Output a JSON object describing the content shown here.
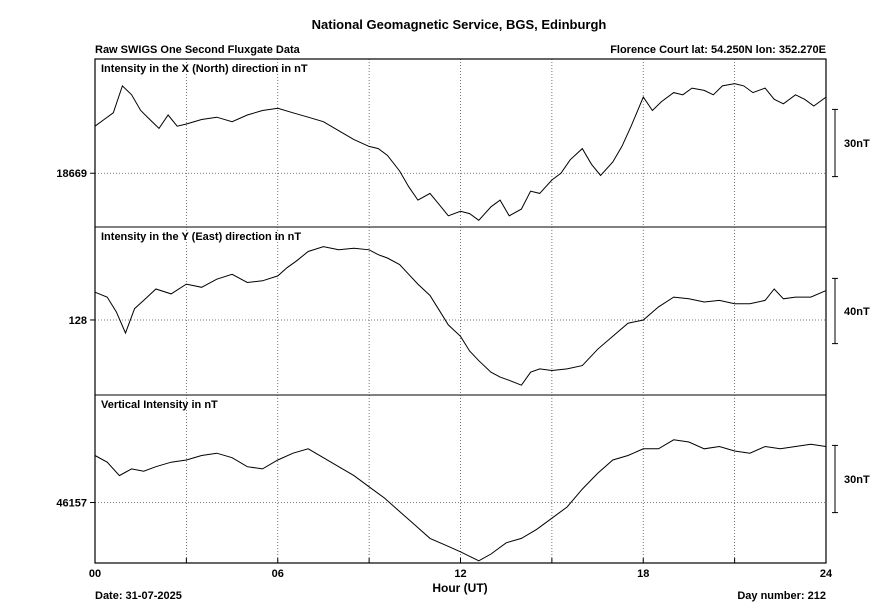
{
  "title": "National Geomagnetic Service, BGS, Edinburgh",
  "subtitle_left": "Raw SWIGS One Second Fluxgate Data",
  "subtitle_right": "Florence Court  lat: 54.250N lon: 352.270E",
  "footer": {
    "date_label": "Date: 31-07-2025",
    "day_label": "Day number:  212"
  },
  "chart_data": {
    "type": "line",
    "xlabel": "Hour (UT)",
    "xlim": [
      0,
      24
    ],
    "x_ticks": [
      0,
      3,
      6,
      9,
      12,
      15,
      18,
      21,
      24
    ],
    "x_tick_labels": [
      "00",
      "06",
      "12",
      "18",
      "24"
    ],
    "grid": true,
    "panels": [
      {
        "label": "Intensity in the X (North) direction in nT",
        "baseline_label": "18669",
        "baseline_value": 18669,
        "scale_label": "30nT",
        "scale_nT": 30,
        "ylim": [
          18645,
          18720
        ],
        "series": [
          {
            "color": "#000000",
            "x": [
              0,
              0.3,
              0.6,
              0.9,
              1.2,
              1.5,
              1.8,
              2.1,
              2.4,
              2.7,
              3.0,
              3.5,
              4.0,
              4.5,
              5.0,
              5.5,
              6.0,
              6.5,
              7.0,
              7.5,
              8.0,
              8.5,
              9.0,
              9.3,
              9.6,
              10.0,
              10.3,
              10.6,
              11.0,
              11.3,
              11.6,
              12.0,
              12.3,
              12.6,
              13.0,
              13.3,
              13.6,
              14.0,
              14.3,
              14.6,
              15.0,
              15.3,
              15.6,
              16.0,
              16.3,
              16.6,
              17.0,
              17.3,
              17.6,
              18.0,
              18.3,
              18.6,
              19.0,
              19.3,
              19.6,
              20.0,
              20.3,
              20.6,
              21.0,
              21.3,
              21.6,
              22.0,
              22.3,
              22.6,
              23.0,
              23.3,
              23.6,
              24.0
            ],
            "values": [
              18690,
              18693,
              18696,
              18708,
              18704,
              18697,
              18693,
              18689,
              18695,
              18690,
              18691,
              18693,
              18694,
              18692,
              18695,
              18697,
              18698,
              18696,
              18694,
              18692,
              18688,
              18684,
              18681,
              18680,
              18677,
              18670,
              18663,
              18657,
              18660,
              18655,
              18650,
              18652,
              18651,
              18648,
              18654,
              18657,
              18650,
              18653,
              18661,
              18660,
              18666,
              18669,
              18675,
              18680,
              18673,
              18668,
              18674,
              18681,
              18690,
              18703,
              18697,
              18701,
              18705,
              18704,
              18707,
              18706,
              18704,
              18708,
              18709,
              18708,
              18705,
              18707,
              18702,
              18700,
              18704,
              18702,
              18699,
              18703
            ]
          }
        ]
      },
      {
        "label": "Intensity in the Y (East) direction in nT",
        "baseline_label": "128",
        "baseline_value": 128,
        "scale_label": "40nT",
        "scale_nT": 40,
        "ylim": [
          82,
          185
        ],
        "series": [
          {
            "color": "#000000",
            "x": [
              0,
              0.4,
              0.7,
              1.0,
              1.3,
              1.6,
              2.0,
              2.5,
              3.0,
              3.5,
              4.0,
              4.5,
              5.0,
              5.5,
              6.0,
              6.3,
              6.6,
              7.0,
              7.5,
              8.0,
              8.5,
              9.0,
              9.3,
              9.6,
              10.0,
              10.3,
              10.6,
              11.0,
              11.3,
              11.6,
              12.0,
              12.3,
              12.6,
              13.0,
              13.3,
              13.6,
              14.0,
              14.3,
              14.6,
              15.0,
              15.5,
              16.0,
              16.5,
              17.0,
              17.5,
              18.0,
              18.5,
              19.0,
              19.5,
              20.0,
              20.5,
              21.0,
              21.5,
              22.0,
              22.3,
              22.6,
              23.0,
              23.5,
              24.0
            ],
            "values": [
              145,
              142,
              133,
              120,
              135,
              140,
              147,
              144,
              150,
              148,
              153,
              156,
              151,
              152,
              155,
              160,
              164,
              170,
              173,
              171,
              172,
              171,
              168,
              166,
              162,
              156,
              150,
              143,
              134,
              125,
              118,
              109,
              103,
              96,
              93,
              91,
              88,
              96,
              98,
              97,
              98,
              100,
              110,
              118,
              126,
              128,
              136,
              142,
              141,
              139,
              140,
              138,
              138,
              140,
              147,
              141,
              142,
              142,
              146
            ]
          }
        ]
      },
      {
        "label": "Vertical Intensity in nT",
        "baseline_label": "46157",
        "baseline_value": 46157,
        "scale_label": "30nT",
        "scale_nT": 30,
        "ylim": [
          46130,
          46205
        ],
        "series": [
          {
            "color": "#000000",
            "x": [
              0,
              0.4,
              0.8,
              1.2,
              1.6,
              2.0,
              2.5,
              3.0,
              3.5,
              4.0,
              4.5,
              5.0,
              5.5,
              6.0,
              6.5,
              7.0,
              7.5,
              8.0,
              8.5,
              9.0,
              9.5,
              10.0,
              10.5,
              11.0,
              11.5,
              12.0,
              12.3,
              12.6,
              13.0,
              13.5,
              14.0,
              14.5,
              15.0,
              15.5,
              16.0,
              16.5,
              17.0,
              17.5,
              18.0,
              18.5,
              19.0,
              19.5,
              20.0,
              20.5,
              21.0,
              21.5,
              22.0,
              22.5,
              23.0,
              23.5,
              24.0
            ],
            "values": [
              46178,
              46175,
              46169,
              46172,
              46171,
              46173,
              46175,
              46176,
              46178,
              46179,
              46177,
              46173,
              46172,
              46176,
              46179,
              46181,
              46177,
              46173,
              46169,
              46164,
              46159,
              46153,
              46147,
              46141,
              46138,
              46135,
              46133,
              46131,
              46134,
              46139,
              46141,
              46145,
              46150,
              46155,
              46163,
              46170,
              46176,
              46178,
              46181,
              46181,
              46185,
              46184,
              46181,
              46182,
              46180,
              46179,
              46182,
              46181,
              46182,
              46183,
              46182
            ]
          }
        ]
      }
    ]
  }
}
